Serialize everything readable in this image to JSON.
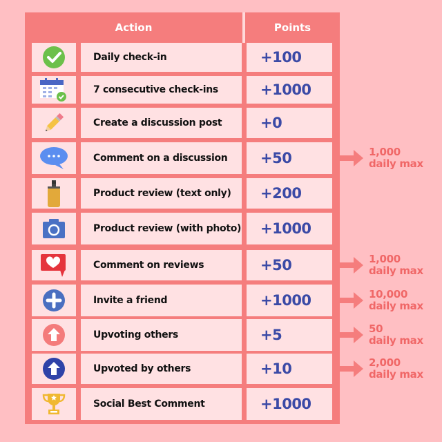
{
  "header": {
    "action": "Action",
    "points": "Points"
  },
  "colors": {
    "background": "#ffbfc3",
    "table": "#f57d7d",
    "cell": "#ffe1e3",
    "points": "#3b4aa6",
    "note": "#f06767"
  },
  "rows": [
    {
      "icon": "check-circle-icon",
      "action": "Daily check-in",
      "points": "+100"
    },
    {
      "icon": "calendar-check-icon",
      "action": "7 consecutive check-ins",
      "points": "+1000"
    },
    {
      "icon": "pencil-icon",
      "action": "Create a discussion post",
      "points": "+0"
    },
    {
      "icon": "speech-bubble-icon",
      "action": "Comment on a discussion",
      "points": "+50",
      "note_amount": "1,000",
      "note_label": "daily max"
    },
    {
      "icon": "lotion-bottle-icon",
      "action": "Product review (text only)",
      "points": "+200"
    },
    {
      "icon": "camera-icon",
      "action": "Product review (with photo)",
      "points": "+1000"
    },
    {
      "icon": "heart-bubble-icon",
      "action": "Comment on reviews",
      "points": "+50",
      "note_amount": "1,000",
      "note_label": "daily max"
    },
    {
      "icon": "plus-circle-icon",
      "action": "Invite a friend",
      "points": "+1000",
      "note_amount": "10,000",
      "note_label": "daily max"
    },
    {
      "icon": "arrow-up-circle-pink-icon",
      "action": "Upvoting others",
      "points": "+5",
      "note_amount": "50",
      "note_label": "daily max"
    },
    {
      "icon": "arrow-up-circle-blue-icon",
      "action": "Upvoted by others",
      "points": "+10",
      "note_amount": "2,000",
      "note_label": "daily max"
    },
    {
      "icon": "trophy-icon",
      "action": "Social Best Comment",
      "points": "+1000"
    }
  ]
}
